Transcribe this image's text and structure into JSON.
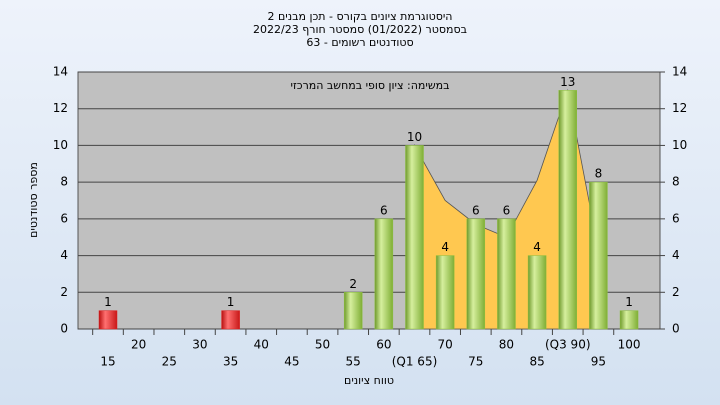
{
  "chart_data": {
    "type": "bar",
    "title": [
      "היסטוגרמת ציונים בקורס - תכן מבנים 2",
      "בסמסטר  (01/2022)  סמסטר חורף 2022/23",
      "סטודנטים רשומים - 63"
    ],
    "annotation": "במשימה: ציון סופי במחשב המרכזי",
    "y_label": "מספר סטודנטים",
    "x_label": "טווח ציונים",
    "categories": [
      "15",
      "20",
      "25",
      "30",
      "35",
      "40",
      "45",
      "50",
      "55",
      "60",
      "(Q1 65)",
      "70",
      "75",
      "80",
      "85",
      "(Q3 90)",
      "95",
      "100"
    ],
    "values": [
      1,
      0,
      0,
      0,
      1,
      0,
      0,
      0,
      2,
      6,
      10,
      4,
      6,
      6,
      4,
      13,
      8,
      1
    ],
    "colors": [
      "#e02020",
      null,
      null,
      null,
      "#e02020",
      null,
      null,
      null,
      "#8cc040",
      "#8cc040",
      "#8cc040",
      "#8cc040",
      "#8cc040",
      "#8cc040",
      "#8cc040",
      "#8cc040",
      "#8cc040",
      "#8cc040"
    ],
    "curve": {
      "color": "#ffc850",
      "values": [
        null,
        null,
        null,
        null,
        null,
        null,
        null,
        null,
        null,
        null,
        10,
        7,
        5.7,
        5,
        8.1,
        13,
        4.3,
        null
      ]
    },
    "ylim": [
      0,
      14
    ],
    "yticks": [
      0,
      2,
      4,
      6,
      8,
      10,
      12,
      14
    ],
    "y2lim": [
      0,
      14
    ],
    "y2ticks": [
      0,
      2,
      4,
      6,
      8,
      10,
      12,
      14
    ],
    "grid": true
  }
}
